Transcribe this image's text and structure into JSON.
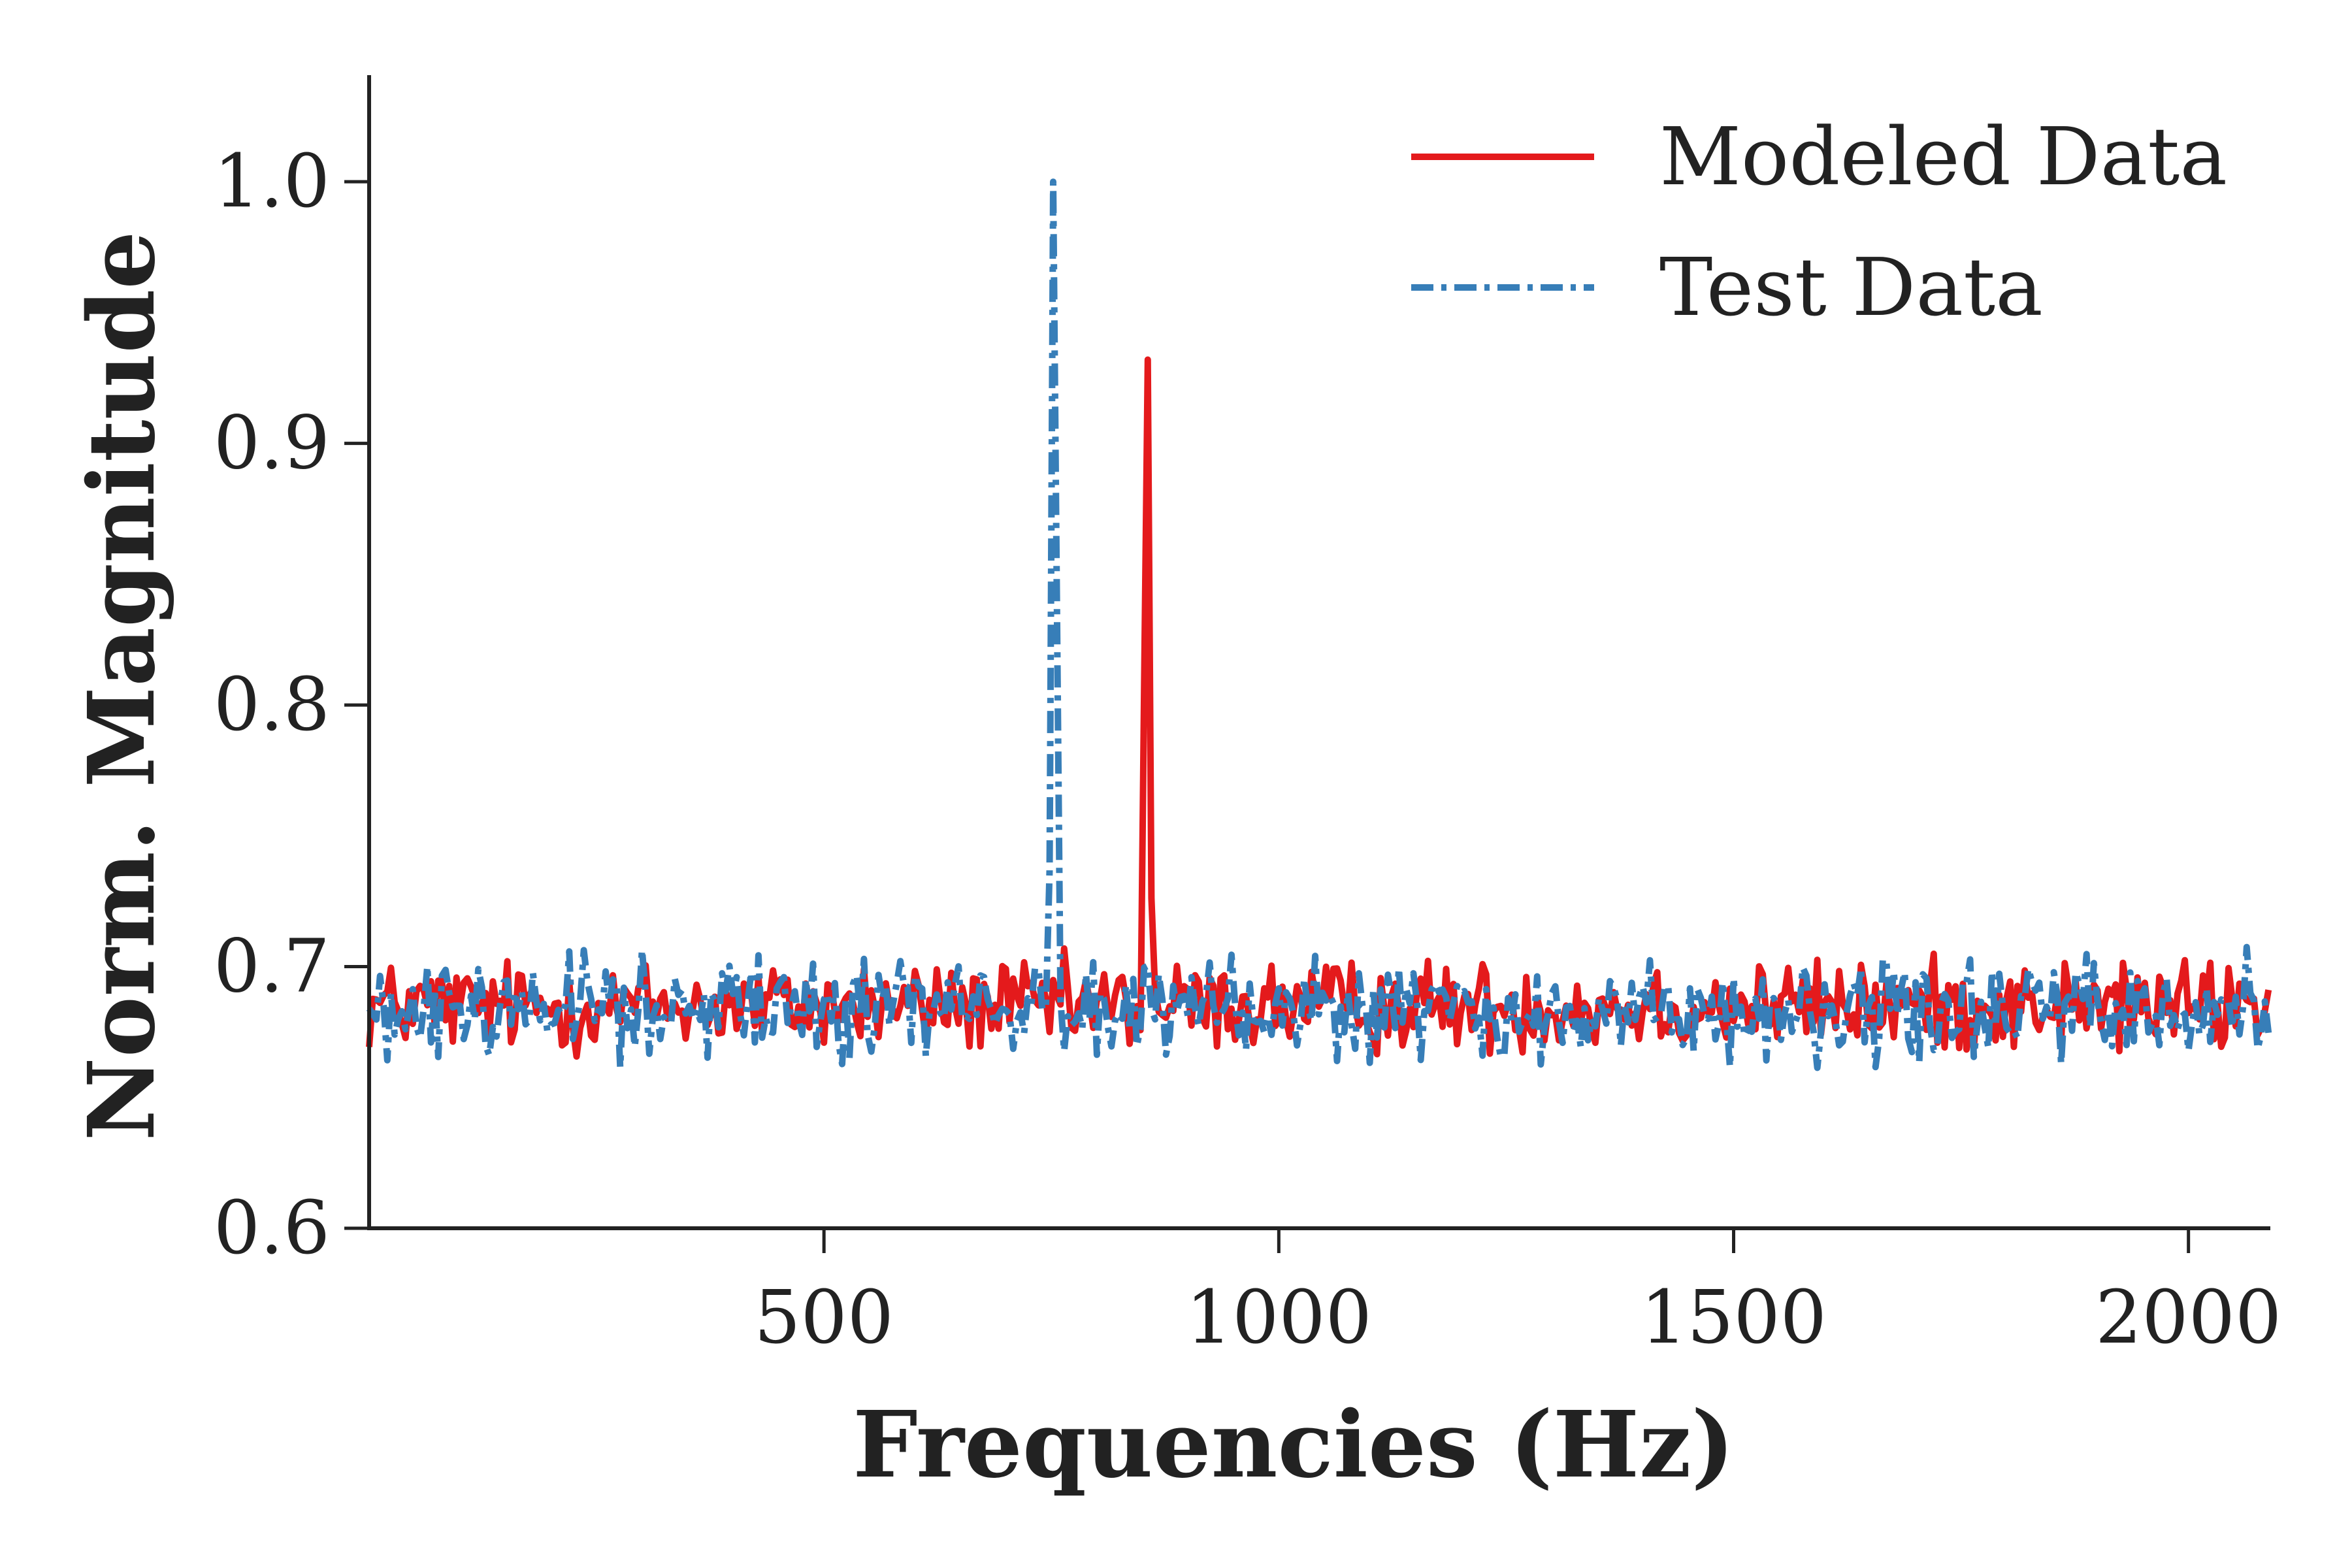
{
  "chart_data": {
    "type": "line",
    "title": "",
    "xlabel": "Frequencies (Hz)",
    "ylabel": "Norm. Magnitude",
    "xlim": [
      0,
      2090
    ],
    "ylim": [
      0.6,
      1.04
    ],
    "x_ticks": [
      500,
      1000,
      1500,
      2000
    ],
    "y_ticks": [
      0.6,
      0.7,
      0.8,
      0.9,
      1.0
    ],
    "x_tick_labels": [
      "500",
      "1000",
      "1500",
      "2000"
    ],
    "y_tick_labels": [
      "0.6",
      "0.7",
      "0.8",
      "0.9",
      "1.0"
    ],
    "grid": false,
    "legend_position": "top-right",
    "series": [
      {
        "name": "Modeled Data",
        "color": "#e41a1c",
        "dash": "solid",
        "noise_mean": 0.685,
        "noise_amplitude": 0.016,
        "peak": {
          "x": 855,
          "y": 0.932,
          "width": 6
        }
      },
      {
        "name": "Test Data",
        "color": "#377eb8",
        "dash": "dash-dot",
        "noise_mean": 0.684,
        "noise_amplitude": 0.018,
        "peak": {
          "x": 753,
          "y": 1.0,
          "width": 6
        }
      }
    ],
    "x_range": [
      0,
      2090
    ],
    "sample_step": 4
  }
}
